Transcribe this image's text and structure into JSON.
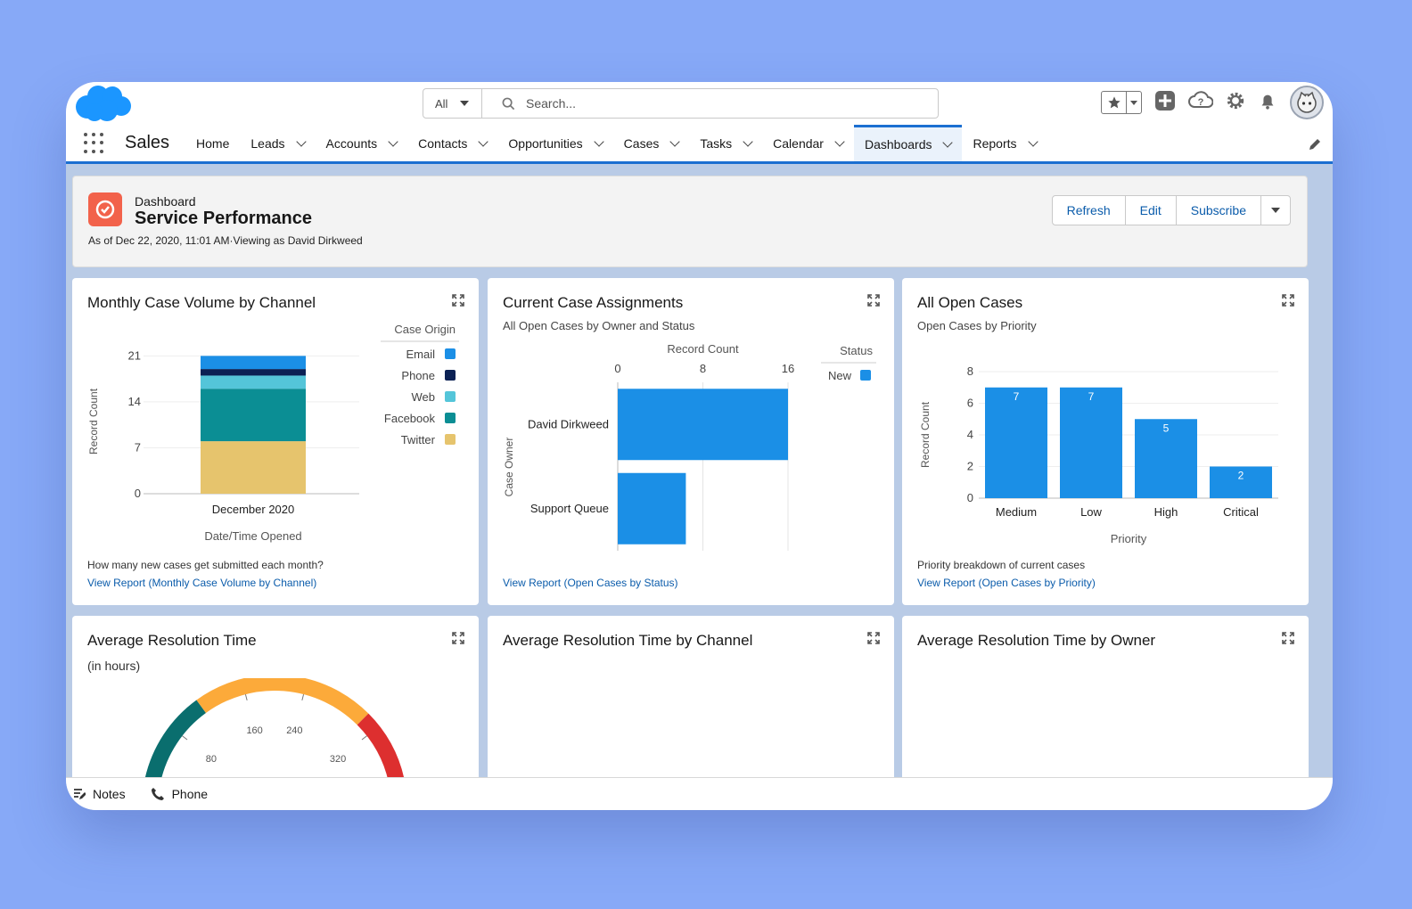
{
  "header": {
    "search_scope": "All",
    "search_placeholder": "Search..."
  },
  "nav": {
    "app_name": "Sales",
    "items": [
      {
        "label": "Home",
        "has_menu": false
      },
      {
        "label": "Leads",
        "has_menu": true
      },
      {
        "label": "Accounts",
        "has_menu": true
      },
      {
        "label": "Contacts",
        "has_menu": true
      },
      {
        "label": "Opportunities",
        "has_menu": true
      },
      {
        "label": "Cases",
        "has_menu": true
      },
      {
        "label": "Tasks",
        "has_menu": true
      },
      {
        "label": "Calendar",
        "has_menu": true
      },
      {
        "label": "Dashboards",
        "has_menu": true,
        "active": true
      },
      {
        "label": "Reports",
        "has_menu": true
      }
    ]
  },
  "dashboard": {
    "type_label": "Dashboard",
    "title": "Service Performance",
    "meta": "As of Dec 22, 2020, 11:01 AM·Viewing as David Dirkweed",
    "buttons": {
      "refresh": "Refresh",
      "edit": "Edit",
      "subscribe": "Subscribe"
    }
  },
  "panels": {
    "monthly": {
      "title": "Monthly Case Volume by Channel",
      "legend_title": "Case Origin",
      "footer": "How many new cases get submitted each month?",
      "link": "View Report (Monthly Case Volume by Channel)"
    },
    "assignments": {
      "title": "Current Case Assignments",
      "subtitle": "All Open Cases by Owner and Status",
      "legend_title": "Status",
      "link": "View Report (Open Cases by Status)"
    },
    "open_cases": {
      "title": "All Open Cases",
      "subtitle": "Open Cases by Priority",
      "footer": "Priority breakdown of current cases",
      "link": "View Report (Open Cases by Priority)"
    },
    "avg_resolution": {
      "title": "Average Resolution Time",
      "subtitle": "(in hours)"
    },
    "avg_by_channel": {
      "title": "Average Resolution Time by Channel"
    },
    "avg_by_owner": {
      "title": "Average Resolution Time by Owner"
    }
  },
  "utility": {
    "notes": "Notes",
    "phone": "Phone"
  },
  "colors": {
    "brand": "#1b96ff",
    "email": "#1b8fe6",
    "phone": "#0b2154",
    "web": "#54c5d9",
    "facebook": "#0b8e94",
    "twitter": "#e6c46d",
    "bar": "#1b8fe6"
  },
  "chart_data": [
    {
      "type": "bar",
      "stacked": true,
      "title": "Monthly Case Volume by Channel",
      "categories": [
        "December 2020"
      ],
      "xlabel": "Date/Time Opened",
      "ylabel": "Record Count",
      "yticks": [
        0,
        7,
        14,
        21
      ],
      "ylim": [
        0,
        22
      ],
      "legend_title": "Case Origin",
      "series": [
        {
          "name": "Twitter",
          "values": [
            8
          ]
        },
        {
          "name": "Facebook",
          "values": [
            8
          ]
        },
        {
          "name": "Web",
          "values": [
            2
          ]
        },
        {
          "name": "Phone",
          "values": [
            1
          ]
        },
        {
          "name": "Email",
          "values": [
            2
          ]
        }
      ]
    },
    {
      "type": "bar",
      "orientation": "horizontal",
      "title": "Current Case Assignments",
      "categories": [
        "David Dirkweed",
        "Support Queue"
      ],
      "xlabel": "Record Count",
      "ylabel": "Case Owner",
      "xticks": [
        0,
        8,
        16
      ],
      "xlim": [
        0,
        16
      ],
      "legend_title": "Status",
      "series": [
        {
          "name": "New",
          "values": [
            16,
            6.4
          ]
        }
      ]
    },
    {
      "type": "bar",
      "title": "All Open Cases",
      "categories": [
        "Medium",
        "Low",
        "High",
        "Critical"
      ],
      "values": [
        7,
        7,
        5,
        2
      ],
      "xlabel": "Priority",
      "ylabel": "Record Count",
      "yticks": [
        0,
        2,
        4,
        6,
        8
      ],
      "ylim": [
        0,
        8
      ]
    },
    {
      "type": "gauge",
      "title": "Average Resolution Time",
      "ticks": [
        80,
        160,
        240,
        320
      ]
    }
  ]
}
